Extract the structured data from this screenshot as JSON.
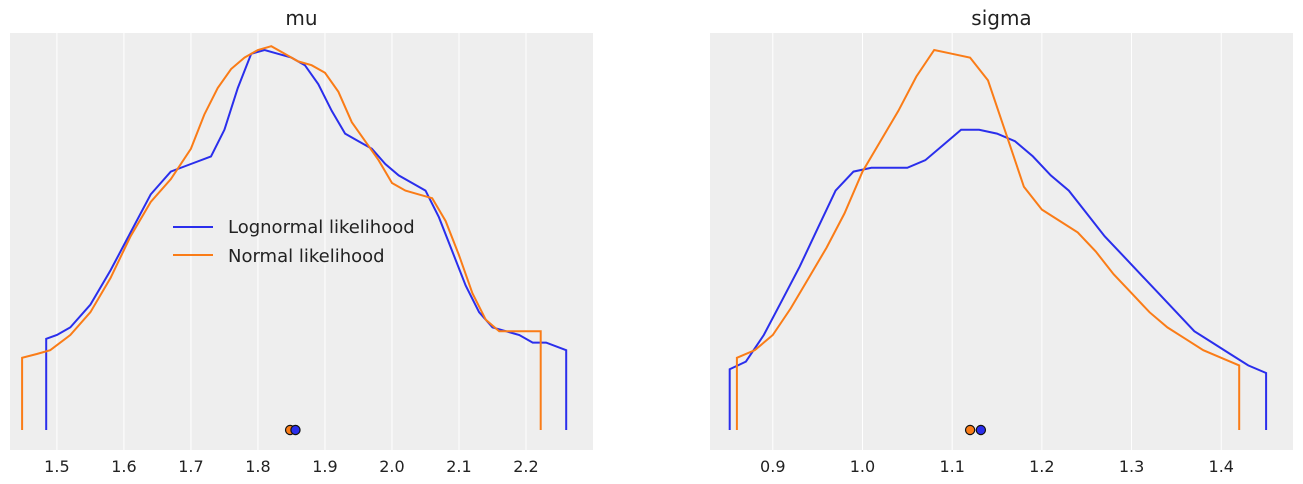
{
  "colors": {
    "lognormal": "#2a2eec",
    "normal": "#fa7c17",
    "background": "#eeeeee"
  },
  "legend": {
    "placement": "center-left",
    "entries": [
      "Lognormal likelihood",
      "Normal likelihood"
    ]
  },
  "chart_data": [
    {
      "type": "line",
      "title": "mu",
      "xlabel": "",
      "ylabel": "",
      "xlim": [
        1.43,
        2.3
      ],
      "ylim": [
        0,
        1.05
      ],
      "grid": true,
      "xticks": [
        1.5,
        1.6,
        1.7,
        1.8,
        1.9,
        2.0,
        2.1,
        2.2
      ],
      "xtick_labels": [
        "1.5",
        "1.6",
        "1.7",
        "1.8",
        "1.9",
        "2.0",
        "2.1",
        "2.2"
      ],
      "series": [
        {
          "name": "Lognormal likelihood",
          "color_key": "lognormal",
          "x": [
            1.484,
            1.484,
            1.5,
            1.52,
            1.55,
            1.58,
            1.61,
            1.64,
            1.67,
            1.7,
            1.73,
            1.75,
            1.77,
            1.79,
            1.81,
            1.83,
            1.85,
            1.87,
            1.89,
            1.91,
            1.93,
            1.95,
            1.97,
            1.99,
            2.01,
            2.03,
            2.05,
            2.07,
            2.09,
            2.11,
            2.13,
            2.15,
            2.17,
            2.19,
            2.21,
            2.23,
            2.26,
            2.26
          ],
          "y": [
            0.0,
            0.24,
            0.25,
            0.27,
            0.33,
            0.42,
            0.52,
            0.62,
            0.68,
            0.7,
            0.72,
            0.79,
            0.9,
            0.99,
            1.0,
            0.99,
            0.98,
            0.96,
            0.91,
            0.84,
            0.78,
            0.76,
            0.74,
            0.7,
            0.67,
            0.65,
            0.63,
            0.56,
            0.47,
            0.38,
            0.31,
            0.27,
            0.26,
            0.25,
            0.23,
            0.23,
            0.21,
            0.0
          ]
        },
        {
          "name": "Normal likelihood",
          "color_key": "normal",
          "x": [
            1.448,
            1.448,
            1.47,
            1.49,
            1.52,
            1.55,
            1.58,
            1.61,
            1.64,
            1.67,
            1.7,
            1.72,
            1.74,
            1.76,
            1.78,
            1.8,
            1.82,
            1.84,
            1.86,
            1.88,
            1.9,
            1.92,
            1.94,
            1.96,
            1.98,
            2.0,
            2.02,
            2.04,
            2.06,
            2.08,
            2.1,
            2.12,
            2.14,
            2.16,
            2.18,
            2.222,
            2.222
          ],
          "y": [
            0.0,
            0.19,
            0.2,
            0.21,
            0.25,
            0.31,
            0.4,
            0.51,
            0.6,
            0.66,
            0.74,
            0.83,
            0.9,
            0.95,
            0.98,
            1.0,
            1.01,
            0.99,
            0.97,
            0.96,
            0.94,
            0.89,
            0.81,
            0.76,
            0.71,
            0.65,
            0.63,
            0.62,
            0.61,
            0.55,
            0.46,
            0.36,
            0.29,
            0.26,
            0.26,
            0.26,
            0.0
          ]
        }
      ],
      "point_estimates": [
        {
          "series": "Lognormal likelihood",
          "x": 1.856
        },
        {
          "series": "Normal likelihood",
          "x": 1.848
        }
      ]
    },
    {
      "type": "line",
      "title": "sigma",
      "xlabel": "",
      "ylabel": "",
      "xlim": [
        0.83,
        1.48
      ],
      "ylim": [
        0,
        1.05
      ],
      "grid": true,
      "xticks": [
        0.9,
        1.0,
        1.1,
        1.2,
        1.3,
        1.4
      ],
      "xtick_labels": [
        "0.9",
        "1.0",
        "1.1",
        "1.2",
        "1.3",
        "1.4"
      ],
      "series": [
        {
          "name": "Lognormal likelihood",
          "color_key": "lognormal",
          "x": [
            0.852,
            0.852,
            0.87,
            0.89,
            0.91,
            0.93,
            0.95,
            0.97,
            0.99,
            1.01,
            1.03,
            1.05,
            1.07,
            1.09,
            1.11,
            1.13,
            1.15,
            1.17,
            1.19,
            1.21,
            1.23,
            1.25,
            1.27,
            1.29,
            1.31,
            1.33,
            1.35,
            1.37,
            1.39,
            1.41,
            1.43,
            1.45,
            1.45
          ],
          "y": [
            0.0,
            0.16,
            0.18,
            0.25,
            0.34,
            0.43,
            0.53,
            0.63,
            0.68,
            0.69,
            0.69,
            0.69,
            0.71,
            0.75,
            0.79,
            0.79,
            0.78,
            0.76,
            0.72,
            0.67,
            0.63,
            0.57,
            0.51,
            0.46,
            0.41,
            0.36,
            0.31,
            0.26,
            0.23,
            0.2,
            0.17,
            0.15,
            0.0
          ]
        },
        {
          "name": "Normal likelihood",
          "color_key": "normal",
          "x": [
            0.86,
            0.86,
            0.88,
            0.9,
            0.92,
            0.94,
            0.96,
            0.98,
            1.0,
            1.02,
            1.04,
            1.06,
            1.08,
            1.1,
            1.12,
            1.14,
            1.16,
            1.18,
            1.2,
            1.22,
            1.24,
            1.26,
            1.28,
            1.3,
            1.32,
            1.34,
            1.36,
            1.38,
            1.4,
            1.42,
            1.42
          ],
          "y": [
            0.0,
            0.19,
            0.21,
            0.25,
            0.32,
            0.4,
            0.48,
            0.57,
            0.68,
            0.76,
            0.84,
            0.93,
            1.0,
            0.99,
            0.98,
            0.92,
            0.78,
            0.64,
            0.58,
            0.55,
            0.52,
            0.47,
            0.41,
            0.36,
            0.31,
            0.27,
            0.24,
            0.21,
            0.19,
            0.17,
            0.0
          ]
        }
      ],
      "point_estimates": [
        {
          "series": "Lognormal likelihood",
          "x": 1.132
        },
        {
          "series": "Normal likelihood",
          "x": 1.12
        }
      ]
    }
  ]
}
